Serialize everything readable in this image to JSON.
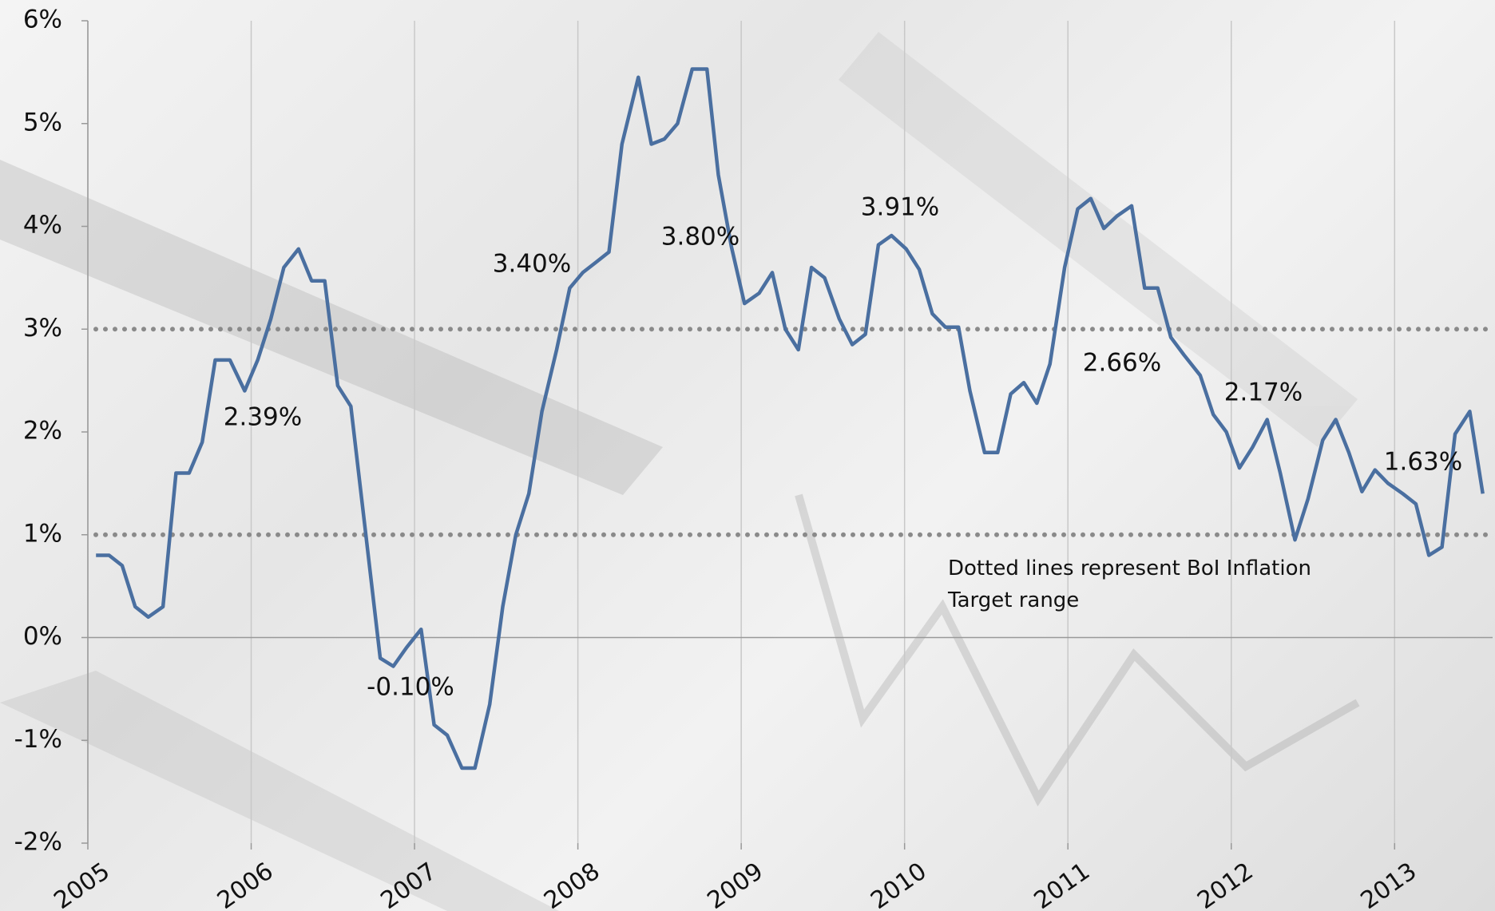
{
  "chart_data": {
    "type": "line",
    "xlim": [
      2005,
      2013.6
    ],
    "ylim": [
      -2,
      6
    ],
    "xticks": [
      2005,
      2006,
      2007,
      2008,
      2009,
      2010,
      2011,
      2012,
      2013
    ],
    "yticks": [
      {
        "value": -2,
        "label": "-2%"
      },
      {
        "value": -1,
        "label": "-1%"
      },
      {
        "value": 0,
        "label": "0%"
      },
      {
        "value": 1,
        "label": "1%"
      },
      {
        "value": 2,
        "label": "2%"
      },
      {
        "value": 3,
        "label": "3%"
      },
      {
        "value": 4,
        "label": "4%"
      },
      {
        "value": 5,
        "label": "5%"
      },
      {
        "value": 6,
        "label": "6%"
      }
    ],
    "grid": true,
    "target_range": [
      1,
      3
    ],
    "x": [
      2005.05,
      2005.13,
      2005.21,
      2005.29,
      2005.37,
      2005.46,
      2005.54,
      2005.62,
      2005.7,
      2005.78,
      2005.87,
      2005.96,
      2006.04,
      2006.12,
      2006.2,
      2006.29,
      2006.37,
      2006.45,
      2006.53,
      2006.61,
      2006.68,
      2006.79,
      2006.87,
      2006.95,
      2007.04,
      2007.12,
      2007.2,
      2007.29,
      2007.37,
      2007.46,
      2007.54,
      2007.62,
      2007.7,
      2007.78,
      2007.87,
      2007.95,
      2008.03,
      2008.11,
      2008.19,
      2008.27,
      2008.37,
      2008.45,
      2008.53,
      2008.61,
      2008.7,
      2008.79,
      2008.86,
      2008.94,
      2009.02,
      2009.11,
      2009.19,
      2009.27,
      2009.35,
      2009.43,
      2009.51,
      2009.6,
      2009.68,
      2009.76,
      2009.84,
      2009.92,
      2010.01,
      2010.09,
      2010.17,
      2010.25,
      2010.33,
      2010.4,
      2010.49,
      2010.57,
      2010.65,
      2010.73,
      2010.81,
      2010.89,
      2010.98,
      2011.06,
      2011.14,
      2011.22,
      2011.3,
      2011.39,
      2011.47,
      2011.55,
      2011.63,
      2011.71,
      2011.81,
      2011.89,
      2011.97,
      2012.05,
      2012.13,
      2012.22,
      2012.3,
      2012.39,
      2012.47,
      2012.56,
      2012.64,
      2012.72,
      2012.8,
      2012.88,
      2012.96,
      2013.05,
      2013.13,
      2013.21,
      2013.29,
      2013.37,
      2013.46,
      2013.54
    ],
    "series": [
      {
        "color": "#4a6fa0",
        "values": [
          0.8,
          0.8,
          0.7,
          0.3,
          0.2,
          0.3,
          1.6,
          1.6,
          1.9,
          2.7,
          2.7,
          2.4,
          2.7,
          3.1,
          3.6,
          3.78,
          3.47,
          3.47,
          2.45,
          2.25,
          1.3,
          -0.2,
          -0.28,
          -0.1,
          0.08,
          -0.85,
          -0.95,
          -1.27,
          -1.27,
          -0.65,
          0.3,
          1.0,
          1.4,
          2.2,
          2.8,
          3.4,
          3.55,
          3.65,
          3.75,
          4.8,
          5.45,
          4.8,
          4.85,
          5.0,
          5.53,
          5.53,
          4.5,
          3.8,
          3.25,
          3.35,
          3.55,
          3.0,
          2.8,
          3.6,
          3.5,
          3.1,
          2.85,
          2.95,
          3.82,
          3.91,
          3.78,
          3.58,
          3.15,
          3.02,
          3.02,
          2.4,
          1.8,
          1.8,
          2.37,
          2.48,
          2.28,
          2.66,
          3.6,
          4.17,
          4.27,
          3.98,
          4.1,
          4.2,
          3.4,
          3.4,
          2.92,
          2.75,
          2.55,
          2.17,
          2.0,
          1.65,
          1.85,
          2.12,
          1.6,
          0.95,
          1.35,
          1.92,
          2.12,
          1.8,
          1.42,
          1.63,
          1.5,
          1.4,
          1.3,
          0.8,
          0.88,
          1.98,
          2.2,
          1.4
        ]
      }
    ],
    "annotations": [
      "2.39%",
      "-0.10%",
      "3.40%",
      "3.80%",
      "3.91%",
      "2.66%",
      "2.17%",
      "1.63%"
    ],
    "note": "Dotted lines  represent BoI Inflation Target range"
  }
}
